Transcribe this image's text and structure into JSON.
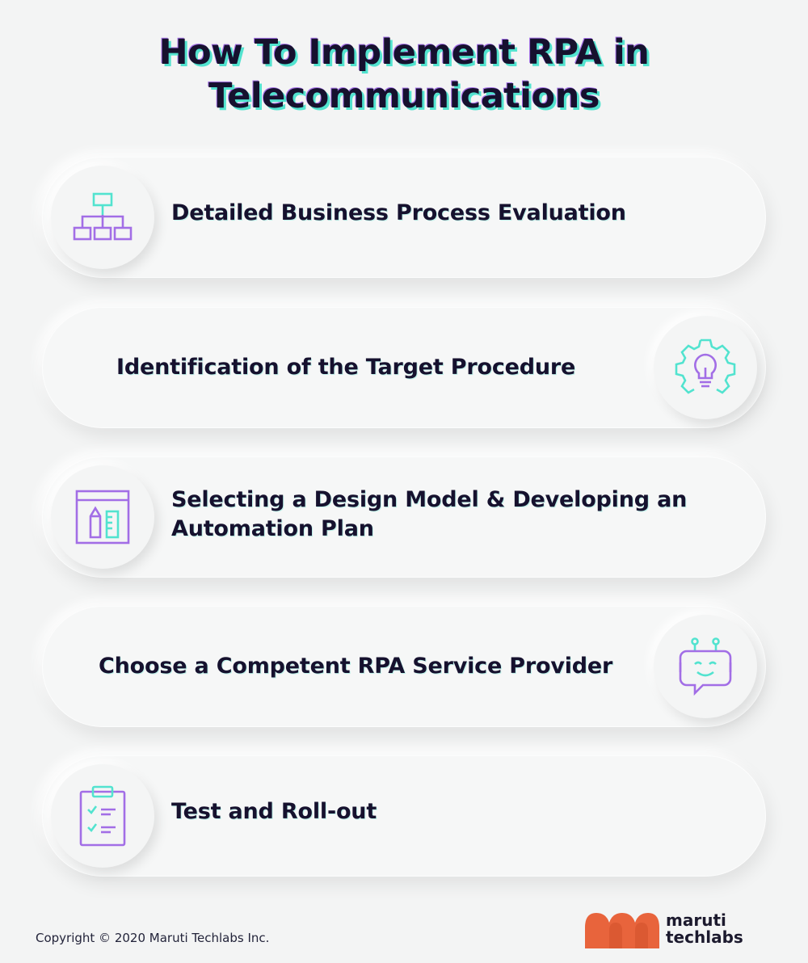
{
  "title_line1": "How To Implement RPA in",
  "title_line2": "Telecommunications",
  "steps": [
    {
      "label": "Detailed Business Process Evaluation",
      "icon": "flowchart-icon",
      "icon_side": "left"
    },
    {
      "label": "Identification of the Target Procedure",
      "icon": "gear-lightbulb-icon",
      "icon_side": "right"
    },
    {
      "label_line1": "Selecting a Design Model & Developing an",
      "label_line2": "Automation Plan",
      "icon": "design-tools-icon",
      "icon_side": "left"
    },
    {
      "label": "Choose a Competent RPA Service Provider",
      "icon": "robot-chat-icon",
      "icon_side": "right"
    },
    {
      "label": "Test and Roll-out",
      "icon": "clipboard-checklist-icon",
      "icon_side": "left"
    }
  ],
  "footer": {
    "copyright": "Copyright © 2020 Maruti Techlabs Inc.",
    "logo_line1": "maruti",
    "logo_line2": "techlabs"
  },
  "colors": {
    "heading": "#16112e",
    "accent_teal": "#52e3cf",
    "accent_purple": "#a26ee6",
    "logo_orange": "#e8643c",
    "background": "#f3f4f4"
  }
}
